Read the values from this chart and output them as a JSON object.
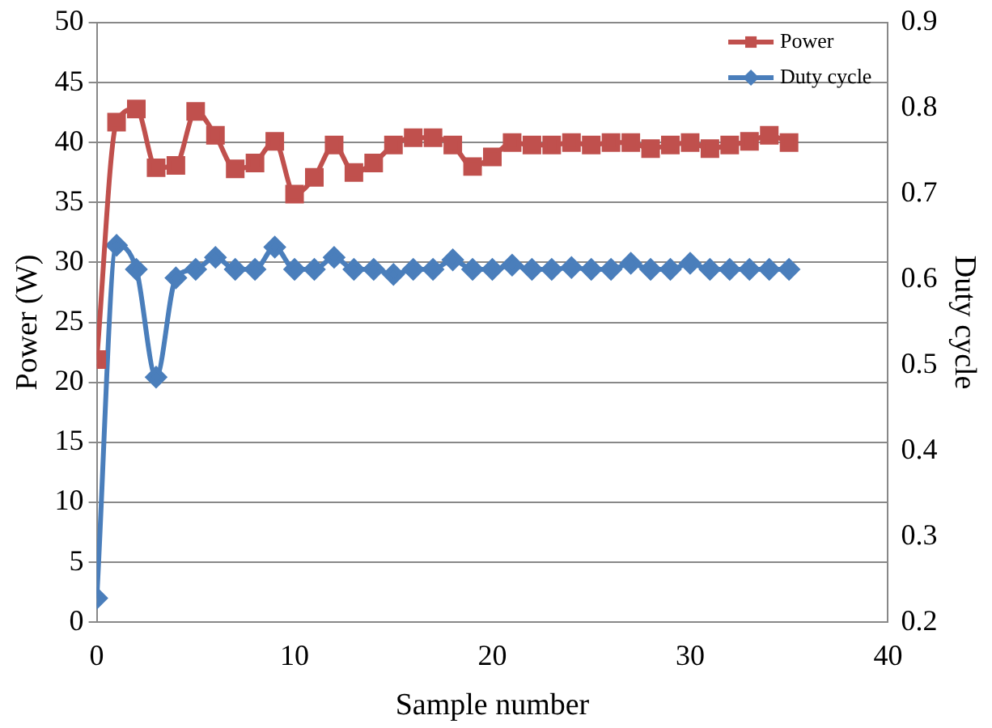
{
  "chart_data": {
    "type": "line",
    "xlabel": "Sample number",
    "ylabel": "Power (W)",
    "y2label": "Duty cycle",
    "x": [
      0,
      1,
      2,
      3,
      4,
      5,
      6,
      7,
      8,
      9,
      10,
      11,
      12,
      13,
      14,
      15,
      16,
      17,
      18,
      19,
      20,
      21,
      22,
      23,
      24,
      25,
      26,
      27,
      28,
      29,
      30,
      31,
      32,
      33,
      34,
      35
    ],
    "series": [
      {
        "name": "Power",
        "color": "#c0504d",
        "marker": "square",
        "values": [
          21.9,
          41.7,
          42.8,
          37.9,
          38.1,
          42.6,
          40.6,
          37.8,
          38.3,
          40.1,
          35.7,
          37.1,
          39.8,
          37.5,
          38.3,
          39.8,
          40.4,
          40.4,
          39.8,
          38.0,
          38.8,
          40.0,
          39.8,
          39.8,
          40.0,
          39.8,
          40.0,
          40.0,
          39.5,
          39.8,
          40.0,
          39.5,
          39.8,
          40.1,
          40.6,
          40.0
        ]
      },
      {
        "name": "Duty cycle",
        "color": "#4a7ebb",
        "marker": "diamond",
        "axis": "y2",
        "values": [
          0.228,
          0.64,
          0.612,
          0.486,
          0.602,
          0.612,
          0.626,
          0.612,
          0.612,
          0.638,
          0.612,
          0.612,
          0.626,
          0.612,
          0.612,
          0.606,
          0.612,
          0.612,
          0.623,
          0.612,
          0.612,
          0.617,
          0.612,
          0.612,
          0.614,
          0.612,
          0.612,
          0.619,
          0.612,
          0.612,
          0.619,
          0.612,
          0.612,
          0.612,
          0.612,
          0.612
        ]
      }
    ],
    "xlim": [
      0,
      40
    ],
    "xticks": [
      0,
      10,
      20,
      30,
      40
    ],
    "ylim": [
      0,
      50
    ],
    "yticks": [
      0,
      5,
      10,
      15,
      20,
      25,
      30,
      35,
      40,
      45,
      50
    ],
    "y2lim": [
      0.2,
      0.9
    ],
    "y2ticks": [
      0.2,
      0.3,
      0.4,
      0.5,
      0.6,
      0.7,
      0.8,
      0.9
    ],
    "grid": "y",
    "legend": "top right"
  }
}
